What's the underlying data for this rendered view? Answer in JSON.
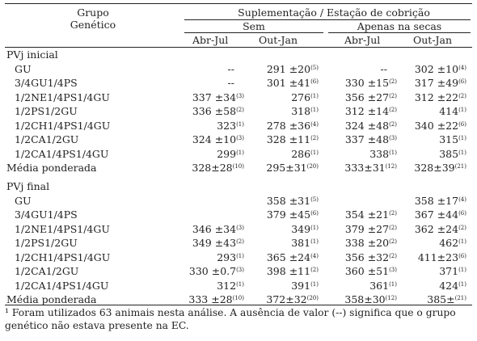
{
  "header": {
    "grupo": "Grupo",
    "genetico": "Genético",
    "suplementacao": "Suplementação / Estação de cobrição",
    "sem": "Sem",
    "apenas": "Apenas na secas",
    "periods": [
      "Abr-Jul",
      "Out-Jan",
      "Abr-Jul",
      "Out-Jan"
    ]
  },
  "sections": [
    {
      "title": "PVj inicial",
      "rows": [
        {
          "label": "GU",
          "cells": [
            {
              "v": "--",
              "n": ""
            },
            {
              "v": "291 ±20",
              "n": "(5)"
            },
            {
              "v": "--",
              "n": ""
            },
            {
              "v": "302 ±10",
              "n": "(4)"
            }
          ]
        },
        {
          "label": "3/4GU1/4PS",
          "cells": [
            {
              "v": "--",
              "n": ""
            },
            {
              "v": "301 ±41",
              "n": "(6)"
            },
            {
              "v": "330 ±15",
              "n": "(2)"
            },
            {
              "v": "317 ±49",
              "n": "(6)"
            }
          ]
        },
        {
          "label": "1/2NE1/4PS1/4GU",
          "cells": [
            {
              "v": "337 ±34",
              "n": "(3)"
            },
            {
              "v": "276",
              "n": "(1)"
            },
            {
              "v": "356 ±27",
              "n": "(2)"
            },
            {
              "v": "312 ±22",
              "n": "(2)"
            }
          ]
        },
        {
          "label": "1/2PS1/2GU",
          "cells": [
            {
              "v": "336 ±58",
              "n": "(2)"
            },
            {
              "v": "318",
              "n": "(1)"
            },
            {
              "v": "312 ±14",
              "n": "(2)"
            },
            {
              "v": "414",
              "n": "(1)"
            }
          ]
        },
        {
          "label": "1/2CH1/4PS1/4GU",
          "cells": [
            {
              "v": "323",
              "n": "(1)"
            },
            {
              "v": "278 ±36",
              "n": "(4)"
            },
            {
              "v": "324 ±48",
              "n": "(2)"
            },
            {
              "v": "340 ±22",
              "n": "(6)"
            }
          ]
        },
        {
          "label": "1/2CA1/2GU",
          "cells": [
            {
              "v": "324 ±10",
              "n": "(3)"
            },
            {
              "v": "328 ±11",
              "n": "(2)"
            },
            {
              "v": "337 ±48",
              "n": "(3)"
            },
            {
              "v": "315",
              "n": "(1)"
            }
          ]
        },
        {
          "label": "1/2CA1/4PS1/4GU",
          "cells": [
            {
              "v": "299",
              "n": "(1)"
            },
            {
              "v": "286",
              "n": "(1)"
            },
            {
              "v": "338",
              "n": "(1)"
            },
            {
              "v": "385",
              "n": "(1)"
            }
          ]
        },
        {
          "label": "Média ponderada",
          "cells": [
            {
              "v": "328±28",
              "n": "(10)"
            },
            {
              "v": "295±31",
              "n": "(20)"
            },
            {
              "v": "333±31",
              "n": "(12)"
            },
            {
              "v": "328±39",
              "n": "(21)"
            }
          ]
        }
      ]
    },
    {
      "title": "PVj final",
      "rows": [
        {
          "label": "GU",
          "cells": [
            {
              "v": "",
              "n": ""
            },
            {
              "v": "358 ±31",
              "n": "(5)"
            },
            {
              "v": "",
              "n": ""
            },
            {
              "v": "358 ±17",
              "n": "(4)"
            }
          ]
        },
        {
          "label": "3/4GU1/4PS",
          "cells": [
            {
              "v": "",
              "n": ""
            },
            {
              "v": "379 ±45",
              "n": "(6)"
            },
            {
              "v": "354 ±21",
              "n": "(2)"
            },
            {
              "v": "367 ±44",
              "n": "(6)"
            }
          ]
        },
        {
          "label": "1/2NE1/4PS1/4GU",
          "cells": [
            {
              "v": "346 ±34",
              "n": "(3)"
            },
            {
              "v": "349",
              "n": "(1)"
            },
            {
              "v": "379 ±27",
              "n": "(2)"
            },
            {
              "v": "362 ±24",
              "n": "(2)"
            }
          ]
        },
        {
          "label": "1/2PS1/2GU",
          "cells": [
            {
              "v": "349 ±43",
              "n": "(2)"
            },
            {
              "v": "381",
              "n": "(1)"
            },
            {
              "v": "338 ±20",
              "n": "(2)"
            },
            {
              "v": "462",
              "n": "(1)"
            }
          ]
        },
        {
          "label": "1/2CH1/4PS1/4GU",
          "cells": [
            {
              "v": "293",
              "n": "(1)"
            },
            {
              "v": "365 ±24",
              "n": "(4)"
            },
            {
              "v": "356 ±32",
              "n": "(2)"
            },
            {
              "v": "411±23",
              "n": "(6)"
            }
          ]
        },
        {
          "label": "1/2CA1/2GU",
          "cells": [
            {
              "v": "330 ±0.7",
              "n": "(3)"
            },
            {
              "v": "398 ±11",
              "n": "(2)"
            },
            {
              "v": "360 ±51",
              "n": "(3)"
            },
            {
              "v": "371",
              "n": "(1)"
            }
          ]
        },
        {
          "label": "1/2CA1/4PS1/4GU",
          "cells": [
            {
              "v": "312",
              "n": "(1)"
            },
            {
              "v": "391",
              "n": "(1)"
            },
            {
              "v": "361",
              "n": "(1)"
            },
            {
              "v": "424",
              "n": "(1)"
            }
          ]
        },
        {
          "label": "Média ponderada",
          "cells": [
            {
              "v": "333 ±28",
              "n": "(10)"
            },
            {
              "v": "372±32",
              "n": "(20)"
            },
            {
              "v": "358±30",
              "n": "(12)"
            },
            {
              "v": "385±",
              "n": "(21)"
            }
          ]
        }
      ]
    }
  ],
  "footnote": "¹ Foram utilizados 63 animais nesta análise. A ausência de valor (--) significa que o grupo genético não estava presente na EC."
}
